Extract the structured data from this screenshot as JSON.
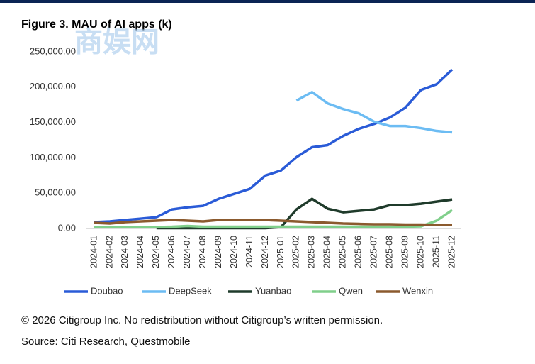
{
  "chart_data": {
    "type": "line",
    "title": "Figure 3. MAU of AI apps (k)",
    "watermark": "商娱网",
    "notes": [
      "© 2026 Citigroup Inc. No redistribution without Citigroup’s written permission.",
      "Source: Citi Research, Questmobile"
    ],
    "categories": [
      "2024-01",
      "2024-02",
      "2024-03",
      "2024-04",
      "2024-05",
      "2024-06",
      "2024-07",
      "2024-08",
      "2024-09",
      "2024-10",
      "2024-11",
      "2024-12",
      "2025-01",
      "2025-02",
      "2025-03",
      "2025-04",
      "2025-05",
      "2025-06",
      "2025-07",
      "2025-08",
      "2025-09",
      "2025-10",
      "2025-11",
      "2025-12"
    ],
    "ylim": [
      0,
      250000
    ],
    "yticks": [
      {
        "value": 0,
        "label": "0.00"
      },
      {
        "value": 50000,
        "label": "50,000.00"
      },
      {
        "value": 100000,
        "label": "100,000.00"
      },
      {
        "value": 150000,
        "label": "150,000.00"
      },
      {
        "value": 200000,
        "label": "200,000.00"
      },
      {
        "value": 250000,
        "label": "250,000.00"
      }
    ],
    "legend": "bottom",
    "series": [
      {
        "name": "Doubao",
        "color": "#2a5bd7",
        "values": [
          9000,
          10000,
          12000,
          14000,
          16000,
          27000,
          30000,
          32000,
          42000,
          49000,
          56000,
          75000,
          82000,
          101000,
          115000,
          118000,
          131000,
          141000,
          148000,
          157000,
          171000,
          196000,
          204000,
          225000
        ]
      },
      {
        "name": "DeepSeek",
        "color": "#6cbcf3",
        "values": [
          null,
          null,
          null,
          null,
          null,
          null,
          null,
          null,
          null,
          null,
          null,
          null,
          null,
          181000,
          193000,
          177000,
          169000,
          163000,
          151000,
          145000,
          145000,
          142000,
          138000,
          136000
        ]
      },
      {
        "name": "Yuanbao",
        "color": "#1f3b2b",
        "values": [
          null,
          null,
          null,
          null,
          500,
          500,
          500,
          500,
          500,
          500,
          500,
          500,
          2000,
          27000,
          42000,
          28000,
          23000,
          25000,
          27000,
          33000,
          33000,
          35000,
          38000,
          41000
        ]
      },
      {
        "name": "Qwen",
        "color": "#80cf8b",
        "values": [
          2000,
          2000,
          2000,
          2000,
          2000,
          2500,
          3500,
          2500,
          2500,
          2500,
          2500,
          2500,
          2500,
          2500,
          2500,
          2500,
          2500,
          2500,
          2500,
          2500,
          2500,
          3000,
          11000,
          26000
        ]
      },
      {
        "name": "Wenxin",
        "color": "#8b5a2e",
        "values": [
          8000,
          7000,
          9000,
          10000,
          11000,
          12000,
          11000,
          10000,
          12000,
          12000,
          12000,
          12000,
          11000,
          10000,
          9000,
          8000,
          7000,
          6500,
          6000,
          6000,
          5500,
          5500,
          5000,
          5000
        ]
      }
    ]
  }
}
